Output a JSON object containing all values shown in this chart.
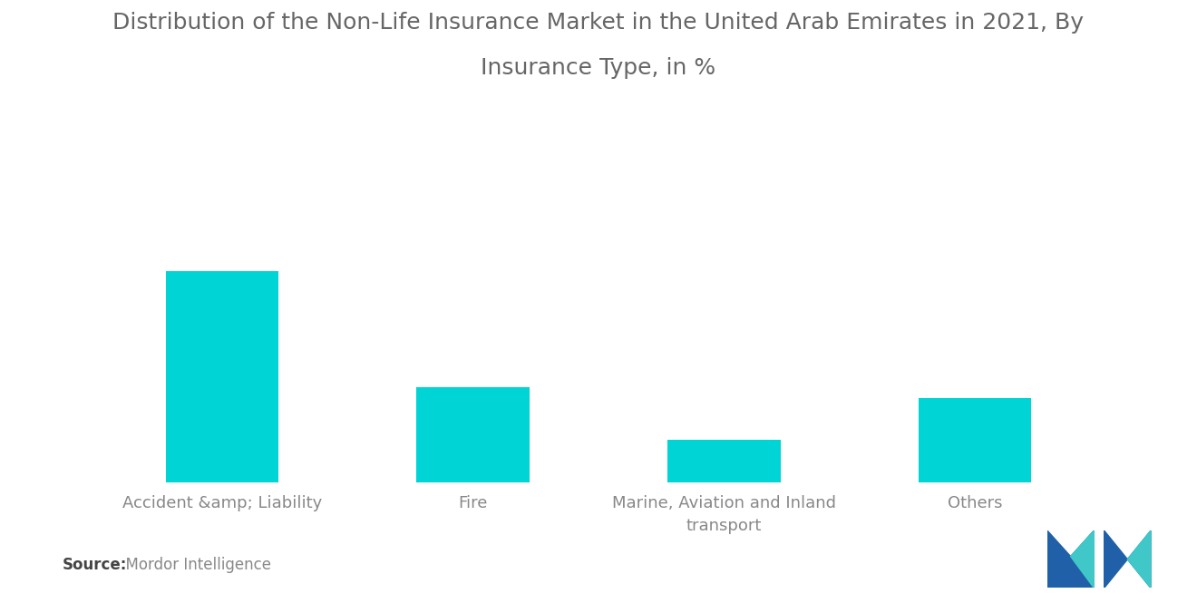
{
  "title_line1": "Distribution of the Non-Life Insurance Market in the United Arab Emirates in 2021, By",
  "title_line2": "Insurance Type, in %",
  "categories": [
    "Accident &amp; Liability",
    "Fire",
    "Marine, Aviation and Inland\ntransport",
    "Others"
  ],
  "values": [
    100,
    45,
    20,
    40
  ],
  "bar_color": "#00D4D4",
  "background_color": "#ffffff",
  "title_fontsize": 18,
  "tick_fontsize": 13,
  "source_label": "Source:",
  "source_body": "  Mordor Intelligence",
  "source_fontsize": 12,
  "ylim": [
    0,
    120
  ],
  "logo_dark_blue": "#2060A8",
  "logo_teal": "#40C8C8"
}
